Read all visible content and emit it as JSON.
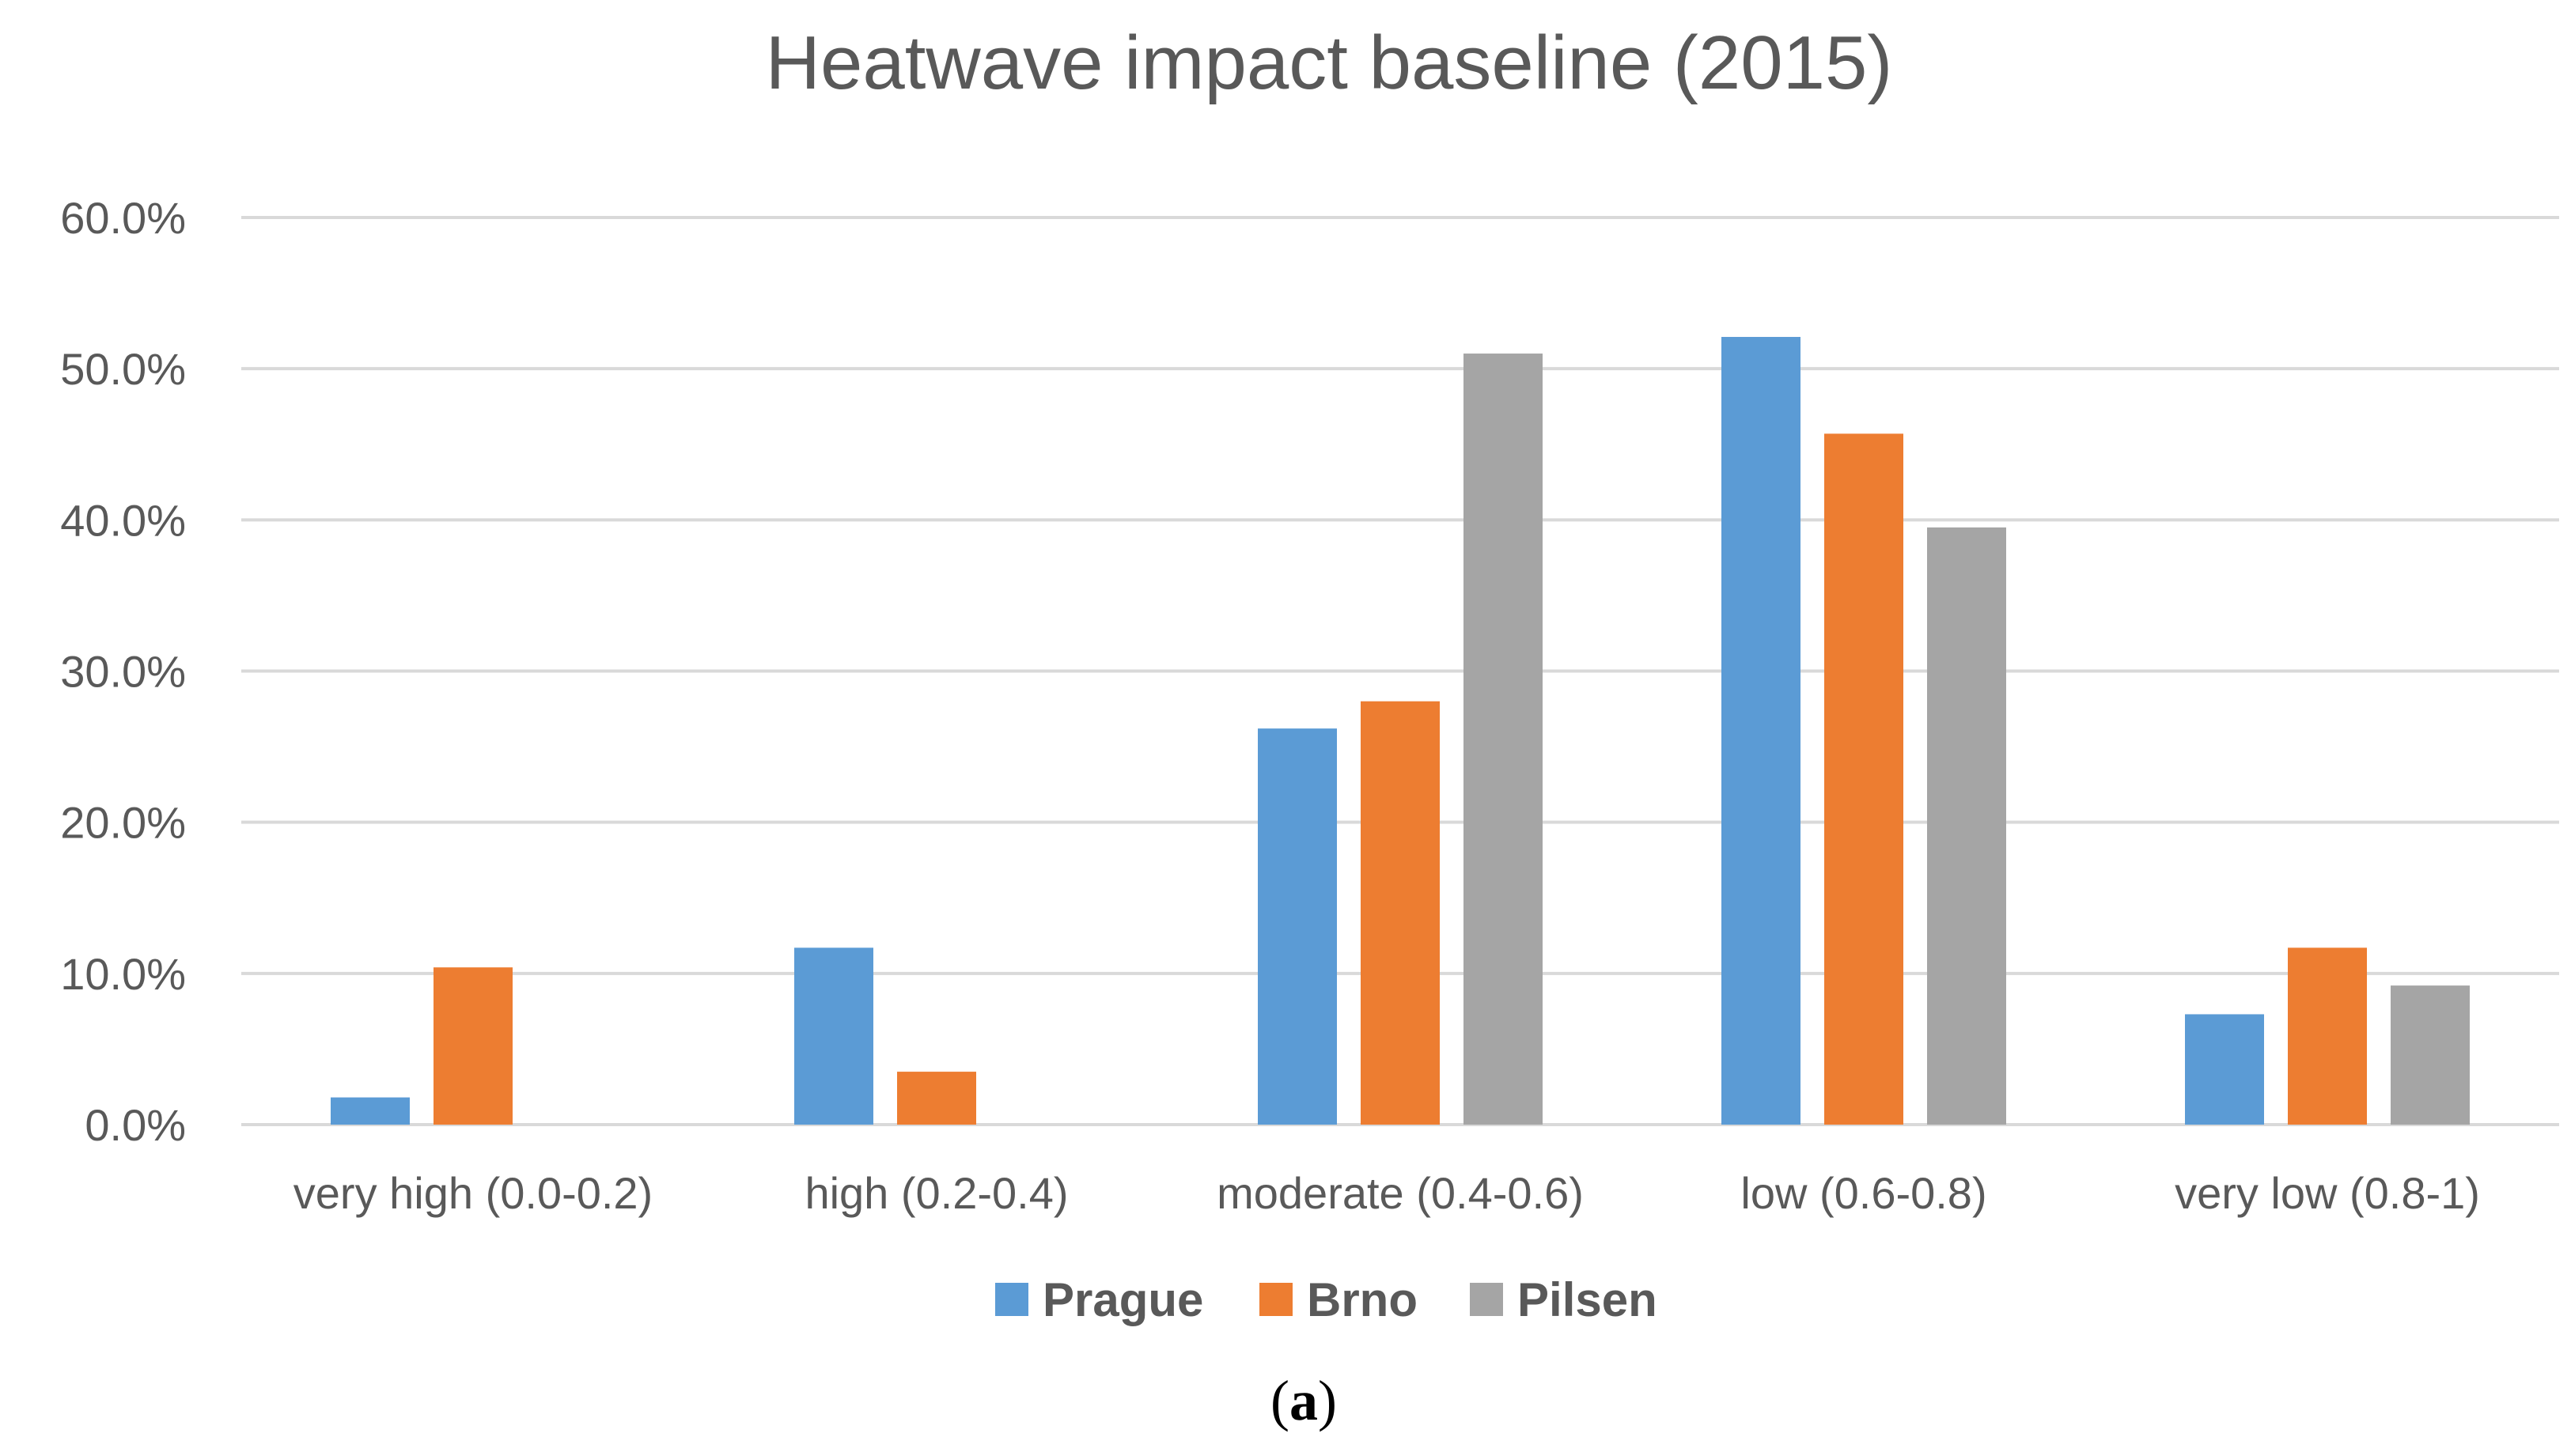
{
  "chart_data": {
    "type": "bar",
    "title": "Heatwave impact baseline (2015)",
    "xlabel": "",
    "ylabel": "",
    "ylim": [
      0,
      60
    ],
    "yticks": [
      "0.0%",
      "10.0%",
      "20.0%",
      "30.0%",
      "40.0%",
      "50.0%",
      "60.0%"
    ],
    "grid": true,
    "legend_position": "bottom",
    "categories": [
      "very high (0.0-0.2)",
      "high (0.2-0.4)",
      "moderate (0.4-0.6)",
      "low (0.6-0.8)",
      "very low (0.8-1)"
    ],
    "series": [
      {
        "name": "Prague",
        "color": "#5b9bd5",
        "values": [
          1.8,
          11.7,
          26.2,
          52.1,
          7.3
        ]
      },
      {
        "name": "Brno",
        "color": "#ed7d31",
        "values": [
          10.4,
          3.5,
          28.0,
          45.7,
          11.7
        ]
      },
      {
        "name": "Pilsen",
        "color": "#a5a5a5",
        "values": [
          0,
          0,
          51.0,
          39.5,
          9.2
        ]
      }
    ]
  },
  "caption": {
    "open": "(",
    "letter": "a",
    "close": ")"
  },
  "colors": {
    "gridline": "#d9d9d9",
    "text": "#595959"
  }
}
